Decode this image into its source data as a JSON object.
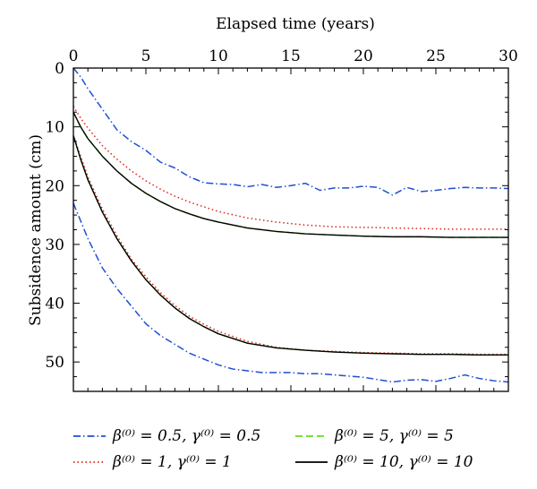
{
  "chart_data": {
    "type": "line",
    "xlabel": "Elapsed time (years)",
    "ylabel": "Subsidence amount (cm)",
    "x_axis_position": "top",
    "y_inverted": true,
    "xlim": [
      0,
      30
    ],
    "ylim": [
      0,
      55
    ],
    "xticks": [
      "0",
      "5",
      "10",
      "15",
      "20",
      "25",
      "30"
    ],
    "yticks": [
      "0",
      "10",
      "20",
      "30",
      "40",
      "50"
    ],
    "grid": false,
    "legend_position": "bottom",
    "legend": [
      {
        "label": "β⁽⁰⁾ = 0.5, γ⁽⁰⁾ = 0.5",
        "color": "#1f4fd1",
        "dash": "dashdot"
      },
      {
        "label": "β⁽⁰⁾ = 1, γ⁽⁰⁾ = 1",
        "color": "#e0201a",
        "dash": "dotted"
      },
      {
        "label": "β⁽⁰⁾ = 5, γ⁽⁰⁾ = 5",
        "color": "#66dd22",
        "dash": "dashed"
      },
      {
        "label": "β⁽⁰⁾ = 10, γ⁽⁰⁾ = 10",
        "color": "#000000",
        "dash": "solid"
      }
    ],
    "series": [
      {
        "legend_index": 0,
        "color": "#1f4fd1",
        "dash": "dashdot",
        "x": [
          0,
          0.5,
          1,
          2,
          3,
          4,
          5,
          6,
          7,
          8,
          9,
          10,
          11,
          12,
          13,
          14,
          15,
          16,
          17,
          18,
          19,
          20,
          21,
          22,
          23,
          24,
          25,
          26,
          27,
          28,
          29,
          30
        ],
        "y": [
          0,
          1.5,
          3.5,
          7,
          10.5,
          12.5,
          14,
          16,
          17,
          18.5,
          19.5,
          19.7,
          19.8,
          20.2,
          19.8,
          20.3,
          20,
          19.6,
          20.8,
          20.4,
          20.4,
          20.1,
          20.3,
          21.6,
          20.3,
          21,
          20.8,
          20.5,
          20.3,
          20.4,
          20.4,
          20.5
        ]
      },
      {
        "legend_index": 1,
        "color": "#e0201a",
        "dash": "dotted",
        "x": [
          0,
          0.5,
          1,
          2,
          3,
          4,
          5,
          6,
          7,
          8,
          9,
          10,
          12,
          14,
          16,
          18,
          20,
          22,
          24,
          26,
          28,
          30
        ],
        "y": [
          6.5,
          8.5,
          10.2,
          13.2,
          15.5,
          17.5,
          19.2,
          20.6,
          21.8,
          22.8,
          23.6,
          24.4,
          25.5,
          26.2,
          26.7,
          27,
          27.1,
          27.2,
          27.3,
          27.4,
          27.4,
          27.4
        ]
      },
      {
        "legend_index": 2,
        "color": "#66dd22",
        "dash": "dashed",
        "x": [
          0,
          0.5,
          1,
          2,
          3,
          4,
          5,
          6,
          7,
          8,
          9,
          10,
          12,
          14,
          16,
          18,
          20,
          22,
          24,
          26,
          28,
          30
        ],
        "y": [
          7.5,
          10,
          12,
          15,
          17.5,
          19.6,
          21.3,
          22.7,
          23.9,
          24.8,
          25.6,
          26.2,
          27.2,
          27.8,
          28.2,
          28.4,
          28.6,
          28.7,
          28.7,
          28.8,
          28.8,
          28.8
        ]
      },
      {
        "legend_index": 3,
        "color": "#000000",
        "dash": "solid",
        "x": [
          0,
          0.5,
          1,
          2,
          3,
          4,
          5,
          6,
          7,
          8,
          9,
          10,
          12,
          14,
          16,
          18,
          20,
          22,
          24,
          26,
          28,
          30
        ],
        "y": [
          7.5,
          10,
          12,
          15,
          17.5,
          19.6,
          21.3,
          22.7,
          23.9,
          24.8,
          25.6,
          26.2,
          27.2,
          27.8,
          28.2,
          28.4,
          28.6,
          28.7,
          28.7,
          28.8,
          28.8,
          28.8
        ]
      },
      {
        "legend_index": 0,
        "color": "#1f4fd1",
        "dash": "dashdot",
        "x": [
          0,
          0.5,
          1,
          2,
          3,
          4,
          5,
          6,
          7,
          8,
          9,
          10,
          11,
          12,
          13,
          14,
          15,
          16,
          17,
          18,
          19,
          20,
          21,
          22,
          23,
          24,
          25,
          26,
          27,
          28,
          29,
          30
        ],
        "y": [
          23,
          26,
          29,
          34,
          37.5,
          40.5,
          43.5,
          45.5,
          47,
          48.5,
          49.5,
          50.5,
          51.2,
          51.5,
          51.8,
          51.8,
          51.8,
          52,
          52,
          52.2,
          52.4,
          52.6,
          53,
          53.4,
          53.1,
          53,
          53.3,
          52.8,
          52.2,
          52.8,
          53.2,
          53.4
        ]
      },
      {
        "legend_index": 1,
        "color": "#e0201a",
        "dash": "dotted",
        "x": [
          0,
          0.5,
          1,
          2,
          3,
          4,
          5,
          6,
          7,
          8,
          9,
          10,
          12,
          14,
          16,
          18,
          20,
          22,
          24,
          26,
          28,
          30
        ],
        "y": [
          11.5,
          15,
          18.5,
          24,
          28.5,
          32.5,
          35.5,
          38.2,
          40.4,
          42.2,
          43.6,
          44.8,
          46.5,
          47.5,
          48,
          48.2,
          48.4,
          48.5,
          48.6,
          48.6,
          48.7,
          48.7
        ]
      },
      {
        "legend_index": 2,
        "color": "#66dd22",
        "dash": "dashed",
        "x": [
          0,
          0.5,
          1,
          2,
          3,
          4,
          5,
          6,
          7,
          8,
          9,
          10,
          12,
          14,
          16,
          18,
          20,
          22,
          24,
          26,
          28,
          30
        ],
        "y": [
          11.5,
          15.5,
          19,
          24.5,
          29,
          32.8,
          36,
          38.6,
          40.8,
          42.6,
          44,
          45.2,
          46.8,
          47.6,
          48,
          48.3,
          48.5,
          48.6,
          48.7,
          48.7,
          48.8,
          48.8
        ]
      },
      {
        "legend_index": 3,
        "color": "#000000",
        "dash": "solid",
        "x": [
          0,
          0.5,
          1,
          2,
          3,
          4,
          5,
          6,
          7,
          8,
          9,
          10,
          12,
          14,
          16,
          18,
          20,
          22,
          24,
          26,
          28,
          30
        ],
        "y": [
          11.5,
          15.5,
          19,
          24.5,
          29,
          32.8,
          36,
          38.6,
          40.8,
          42.6,
          44,
          45.2,
          46.8,
          47.6,
          48,
          48.3,
          48.5,
          48.6,
          48.7,
          48.7,
          48.8,
          48.8
        ]
      }
    ]
  }
}
